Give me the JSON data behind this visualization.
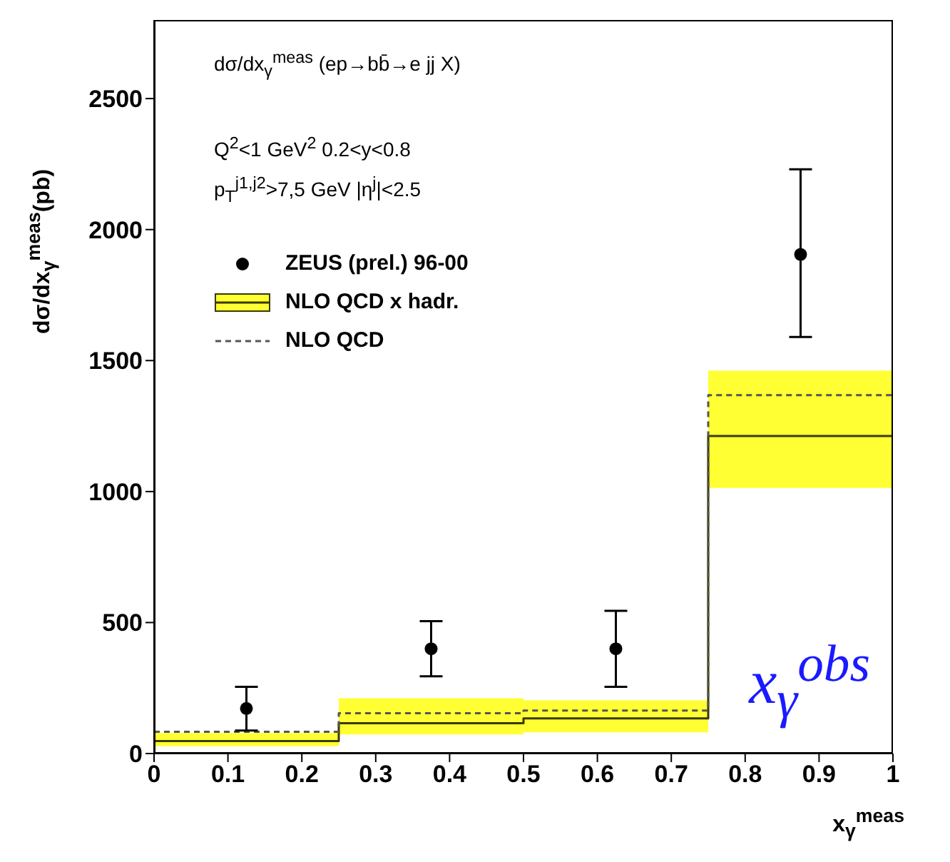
{
  "chart_data": {
    "type": "step",
    "xlabel": "x$_{γ}$$^{meas}$",
    "ylabel": "dσ/dx$_{γ}$$^{meas}$(pb)",
    "xlim": [
      0,
      1
    ],
    "ylim": [
      0,
      2800
    ],
    "xticks": [
      0,
      0.1,
      0.2,
      0.3,
      0.4,
      0.5,
      0.6,
      0.7,
      0.8,
      0.9,
      1
    ],
    "yticks": [
      0,
      500,
      1000,
      1500,
      2000,
      2500
    ],
    "legend": "top left",
    "annotations": [
      "dσ/dx$_{γ}$$^{meas}$ (ep→bb̄→e jj X)",
      "Q$^{2}$<1 GeV$^{2}$  0.2<y<0.8",
      "p$_{T}$$^{j1,j2}$>7,5 GeV   |η$^{j}$|<2.5",
      "x$_{γ}$$^{obs}$"
    ],
    "series": [
      {
        "name": "NLO QCD x hadr.",
        "color": "#3a3a00",
        "x": [
          0,
          0.25,
          0.5,
          0.75,
          1
        ],
        "values": [
          48,
          116,
          134,
          1212,
          1212
        ],
        "lower": [
          28,
          73,
          81,
          1014,
          1014
        ],
        "upper": [
          78,
          211,
          203,
          1461,
          1461
        ]
      },
      {
        "name": "NLO QCD",
        "color": "#555555",
        "line_style": "dashed",
        "x": [
          0,
          0.25,
          0.5,
          0.75,
          1
        ],
        "values": [
          83,
          154,
          164,
          1368,
          1368
        ]
      },
      {
        "type": "scatter",
        "name": "ZEUS (prel.) 96-00",
        "color": "#000000",
        "marker": "circle",
        "x": [
          0.125,
          0.375,
          0.625,
          0.875
        ],
        "values": [
          172,
          400,
          400,
          1905
        ],
        "errors": [
          [
            88,
            255
          ],
          [
            295,
            505
          ],
          [
            255,
            545
          ],
          [
            1590,
            2230
          ]
        ]
      }
    ]
  }
}
